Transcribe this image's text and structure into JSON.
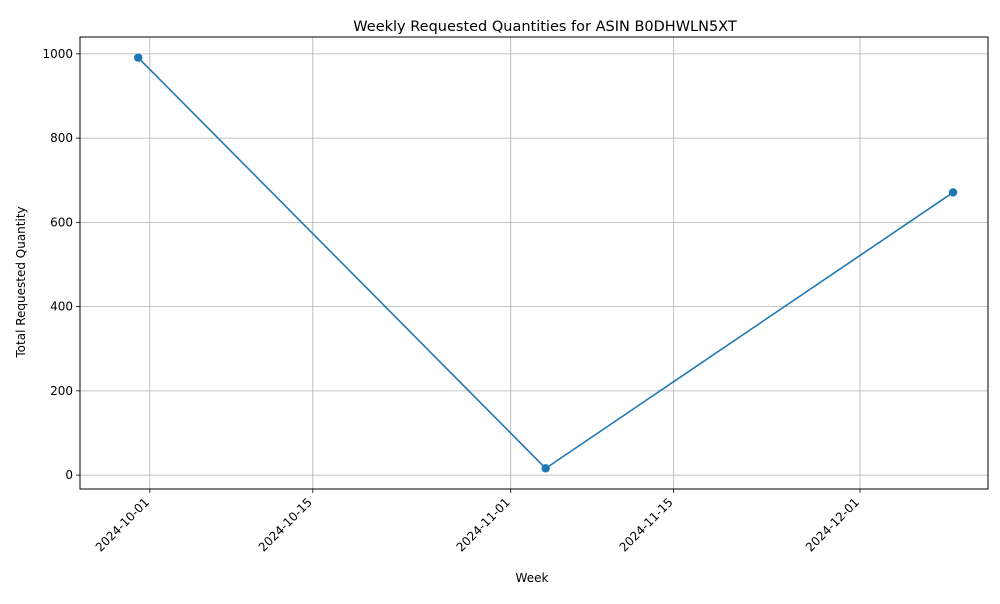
{
  "chart_data": {
    "type": "line",
    "title": "Weekly Requested Quantities for ASIN B0DHWLN5XT",
    "xlabel": "Week",
    "ylabel": "Total Requested Quantity",
    "x_axis_type": "date",
    "x_tick_labels": [
      "2024-10-01",
      "2024-10-15",
      "2024-11-01",
      "2024-11-15",
      "2024-12-01"
    ],
    "y_tick_values": [
      0,
      200,
      400,
      600,
      800,
      1000
    ],
    "xlim": [
      "2024-09-25",
      "2024-12-12"
    ],
    "ylim": [
      -33,
      1040
    ],
    "grid": true,
    "marker": "circle",
    "series": [
      {
        "color": "#1f77b4",
        "x": [
          "2024-09-30",
          "2024-11-04",
          "2024-12-09"
        ],
        "values": [
          991,
          16,
          671
        ]
      }
    ]
  }
}
